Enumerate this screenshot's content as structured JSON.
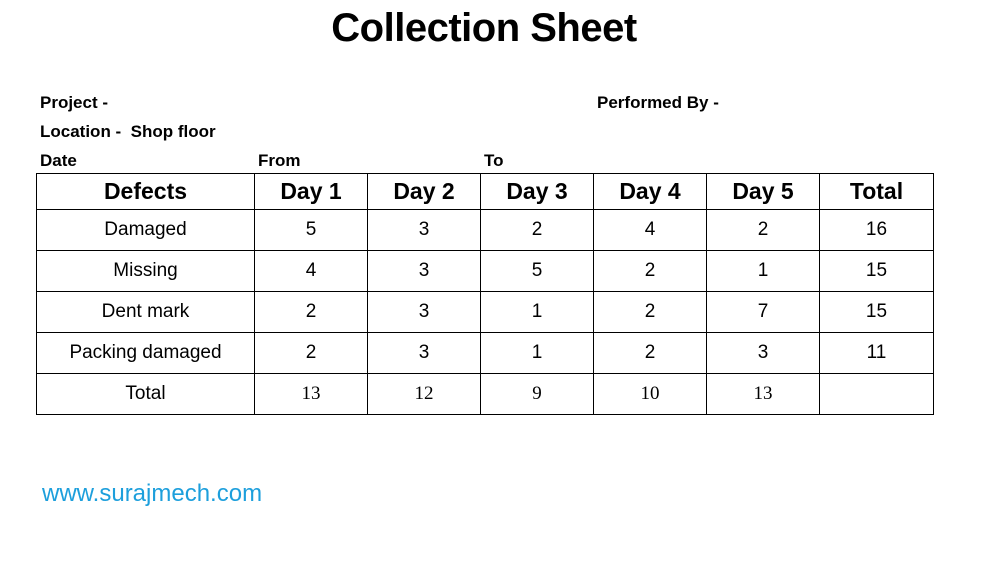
{
  "title": "Collection Sheet",
  "header": {
    "project": "Project -",
    "performed_by": "Performed By -",
    "location": "Location -  Shop floor",
    "date": "Date",
    "from": "From",
    "to": "To"
  },
  "table": {
    "columns": [
      "Defects",
      "Day 1",
      "Day 2",
      "Day 3",
      "Day 4",
      "Day 5",
      "Total"
    ],
    "rows": [
      {
        "label": "Damaged",
        "values": [
          "5",
          "3",
          "2",
          "4",
          "2",
          "16"
        ]
      },
      {
        "label": "Missing",
        "values": [
          "4",
          "3",
          "5",
          "2",
          "1",
          "15"
        ]
      },
      {
        "label": "Dent mark",
        "values": [
          "2",
          "3",
          "1",
          "2",
          "7",
          "15"
        ]
      },
      {
        "label": "Packing damaged",
        "values": [
          "2",
          "3",
          "1",
          "2",
          "3",
          "11"
        ]
      }
    ],
    "total_row": {
      "label": "Total",
      "values": [
        "13",
        "12",
        "9",
        "10",
        "13",
        ""
      ]
    }
  },
  "website": "www.surajmech.com"
}
